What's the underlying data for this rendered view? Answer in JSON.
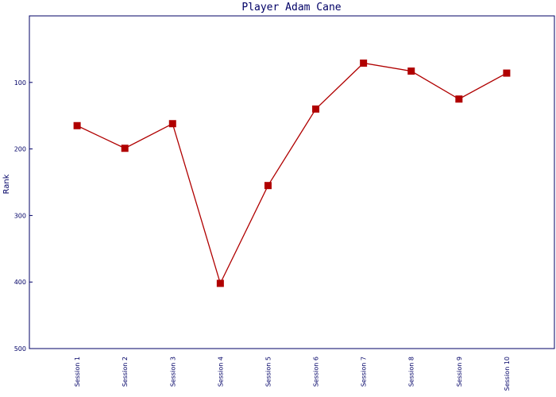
{
  "chart_data": {
    "type": "line",
    "title": "Player Adam Cane",
    "y_label": "Rank",
    "categories": [
      "Session 1",
      "Session 2",
      "Session 3",
      "Session 4",
      "Session 5",
      "Session 6",
      "Session 7",
      "Session 8",
      "Session 9",
      "Session 10"
    ],
    "series": [
      {
        "name": "Rank",
        "color": "#b00000",
        "values": [
          165,
          199,
          162,
          402,
          255,
          140,
          71,
          83,
          125,
          86
        ]
      }
    ],
    "ylim": [
      0,
      500
    ],
    "yticks": [
      100,
      200,
      300,
      400,
      500
    ],
    "y_inverted": true,
    "grid": false
  }
}
